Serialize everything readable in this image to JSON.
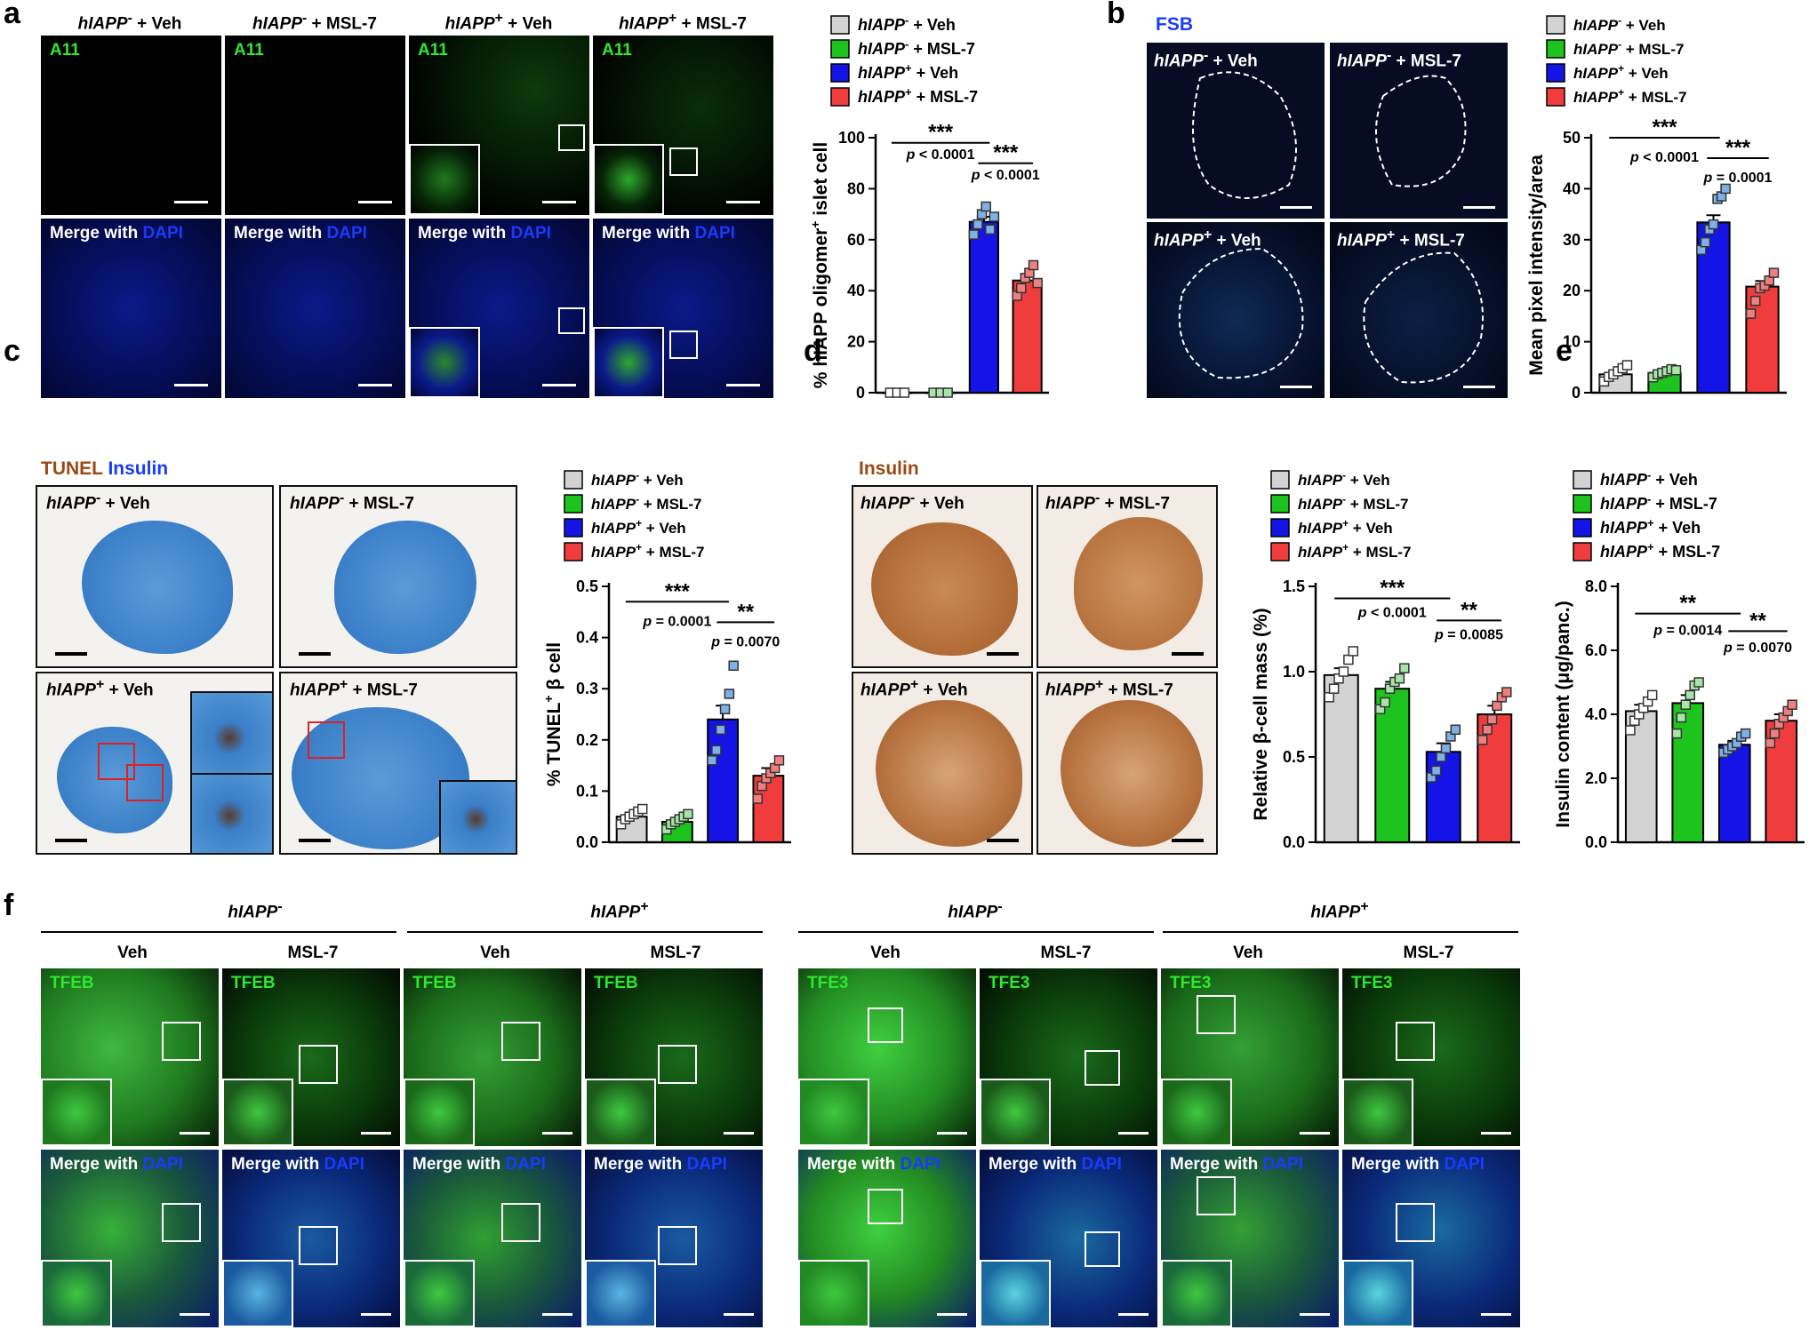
{
  "groups": {
    "g1": {
      "gene": "hIAPP",
      "sup": "-",
      "rest": " + Veh"
    },
    "g2": {
      "gene": "hIAPP",
      "sup": "-",
      "rest": " + MSL-7"
    },
    "g3": {
      "gene": "hIAPP",
      "sup": "+",
      "rest": " + Veh"
    },
    "g4": {
      "gene": "hIAPP",
      "sup": "+",
      "rest": " + MSL-7"
    }
  },
  "colors": {
    "g1": "#d3d3d3",
    "g2": "#1ec41e",
    "g3": "#1414e6",
    "g4": "#f03c3c"
  },
  "panel_a": {
    "label": "a",
    "stain_top": "A11",
    "merge_prefix": "Merge with ",
    "merge_dapi": "DAPI"
  },
  "panel_b": {
    "label": "b",
    "stain": "FSB"
  },
  "panel_c": {
    "label": "c",
    "stain1": "TUNEL",
    "stain2": "Insulin"
  },
  "panel_d": {
    "label": "d",
    "stain": "Insulin"
  },
  "panel_e": {
    "label": "e"
  },
  "panel_f": {
    "label": "f",
    "geno_minus": "hIAPP",
    "sup_minus": "-",
    "geno_plus": "hIAPP",
    "sup_plus": "+",
    "veh": "Veh",
    "msl": "MSL-7",
    "stain_left": "TFEB",
    "stain_right": "TFE3",
    "merge_prefix": "Merge with ",
    "merge_dapi": "DAPI"
  },
  "chart_data": [
    {
      "id": "a",
      "type": "bar",
      "ylabel_pre": "% hIAPP oligomer",
      "ylabel_sup": "+",
      "ylabel_post": " islet cell",
      "ylim": [
        0,
        100
      ],
      "yticks": [
        0,
        20,
        40,
        60,
        80,
        100
      ],
      "ytick_labels": [
        "0",
        "20",
        "40",
        "60",
        "80",
        "100"
      ],
      "categories": [
        "g1",
        "g2",
        "g3",
        "g4"
      ],
      "values": [
        0,
        0,
        67,
        44
      ],
      "errors": [
        0,
        0,
        2,
        2.5
      ],
      "points": [
        [
          0,
          0,
          0
        ],
        [
          0,
          0,
          0
        ],
        [
          62,
          66,
          70,
          73,
          64,
          69
        ],
        [
          38,
          41,
          45,
          47,
          50,
          43
        ]
      ],
      "sig": [
        {
          "stars": "***",
          "p": "p < 0.0001",
          "from": 0,
          "to": 2,
          "y": 98,
          "py": 93
        },
        {
          "stars": "***",
          "p": "p < 0.0001",
          "from": 2,
          "to": 3,
          "y": 90,
          "py": 85
        }
      ]
    },
    {
      "id": "b",
      "type": "bar",
      "ylabel": "Mean pixel intensity/area",
      "ylim": [
        0,
        50
      ],
      "yticks": [
        0,
        10,
        20,
        30,
        40,
        50
      ],
      "ytick_labels": [
        "0",
        "10",
        "20",
        "30",
        "40",
        "50"
      ],
      "categories": [
        "g1",
        "g2",
        "g3",
        "g4"
      ],
      "values": [
        3.6,
        3.9,
        33.4,
        20.8
      ],
      "errors": [
        0.6,
        0.5,
        1.4,
        1.1
      ],
      "points": [
        [
          2.2,
          3.1,
          3.6,
          4.2,
          4.8,
          5.4
        ],
        [
          3.0,
          3.6,
          3.9,
          4.2,
          4.6,
          4.4
        ],
        [
          28,
          29.5,
          32,
          33,
          38,
          38.5,
          40
        ],
        [
          15.5,
          18,
          20.5,
          21,
          22,
          23.5
        ]
      ],
      "sig": [
        {
          "stars": "***",
          "p": "p < 0.0001",
          "from": 0,
          "to": 2,
          "y": 50,
          "py": 46
        },
        {
          "stars": "***",
          "p": "p = 0.0001",
          "from": 2,
          "to": 3,
          "y": 46,
          "py": 42
        }
      ]
    },
    {
      "id": "c",
      "type": "bar",
      "ylabel_pre": "% TUNEL",
      "ylabel_sup": "+",
      "ylabel_post": " β cell",
      "ylim": [
        0,
        0.5
      ],
      "yticks": [
        0,
        0.1,
        0.2,
        0.3,
        0.4,
        0.5
      ],
      "ytick_labels": [
        "0.0",
        "0.1",
        "0.2",
        "0.3",
        "0.4",
        "0.5"
      ],
      "categories": [
        "g1",
        "g2",
        "g3",
        "g4"
      ],
      "values": [
        0.05,
        0.04,
        0.24,
        0.13
      ],
      "errors": [
        0.006,
        0.006,
        0.027,
        0.015
      ],
      "points": [
        [
          0.035,
          0.045,
          0.05,
          0.055,
          0.06,
          0.065
        ],
        [
          0.025,
          0.035,
          0.04,
          0.045,
          0.05,
          0.055
        ],
        [
          0.16,
          0.18,
          0.22,
          0.26,
          0.29,
          0.345
        ],
        [
          0.085,
          0.11,
          0.125,
          0.135,
          0.145,
          0.16
        ]
      ],
      "sig": [
        {
          "stars": "***",
          "p": "p = 0.0001",
          "from": 0,
          "to": 2,
          "y": 0.47,
          "py": 0.43
        },
        {
          "stars": "**",
          "p": "p = 0.0070",
          "from": 2,
          "to": 3,
          "y": 0.43,
          "py": 0.39
        }
      ]
    },
    {
      "id": "d",
      "type": "bar",
      "ylabel_pre": "Relative β-cell mass (%)",
      "ylim": [
        0,
        1.5
      ],
      "yticks": [
        0,
        0.5,
        1.0,
        1.5
      ],
      "ytick_labels": [
        "0.0",
        "0.5",
        "1.0",
        "1.5"
      ],
      "categories": [
        "g1",
        "g2",
        "g3",
        "g4"
      ],
      "values": [
        0.98,
        0.9,
        0.53,
        0.75
      ],
      "errors": [
        0.04,
        0.04,
        0.05,
        0.05
      ],
      "points": [
        [
          0.85,
          0.9,
          0.96,
          1.0,
          1.07,
          1.12
        ],
        [
          0.78,
          0.82,
          0.9,
          0.94,
          0.96,
          1.02
        ],
        [
          0.38,
          0.42,
          0.5,
          0.55,
          0.62,
          0.66
        ],
        [
          0.6,
          0.66,
          0.72,
          0.8,
          0.85,
          0.88
        ]
      ],
      "sig": [
        {
          "stars": "***",
          "p": "p < 0.0001",
          "from": 0,
          "to": 2,
          "y": 1.43,
          "py": 1.34
        },
        {
          "stars": "**",
          "p": "p = 0.0085",
          "from": 2,
          "to": 3,
          "y": 1.3,
          "py": 1.21
        }
      ]
    },
    {
      "id": "e",
      "type": "bar",
      "ylabel": "Insulin content (μg/panc.)",
      "ylim": [
        0,
        8
      ],
      "yticks": [
        0,
        2,
        4,
        6,
        8
      ],
      "ytick_labels": [
        "0.0",
        "2.0",
        "4.0",
        "6.0",
        "8.0"
      ],
      "categories": [
        "g1",
        "g2",
        "g3",
        "g4"
      ],
      "values": [
        4.1,
        4.35,
        3.05,
        3.8
      ],
      "errors": [
        0.2,
        0.25,
        0.12,
        0.2
      ],
      "points": [
        [
          3.5,
          3.8,
          4.0,
          4.2,
          4.4,
          4.6
        ],
        [
          3.4,
          3.9,
          4.3,
          4.6,
          4.9,
          5.0
        ],
        [
          2.8,
          2.9,
          3.0,
          3.1,
          3.3,
          3.4
        ],
        [
          3.1,
          3.4,
          3.7,
          3.9,
          4.1,
          4.3
        ]
      ],
      "sig": [
        {
          "stars": "**",
          "p": "p = 0.0014",
          "from": 0,
          "to": 2,
          "y": 7.15,
          "py": 6.6
        },
        {
          "stars": "**",
          "p": "p = 0.0070",
          "from": 2,
          "to": 3,
          "y": 6.6,
          "py": 6.05
        }
      ]
    }
  ]
}
